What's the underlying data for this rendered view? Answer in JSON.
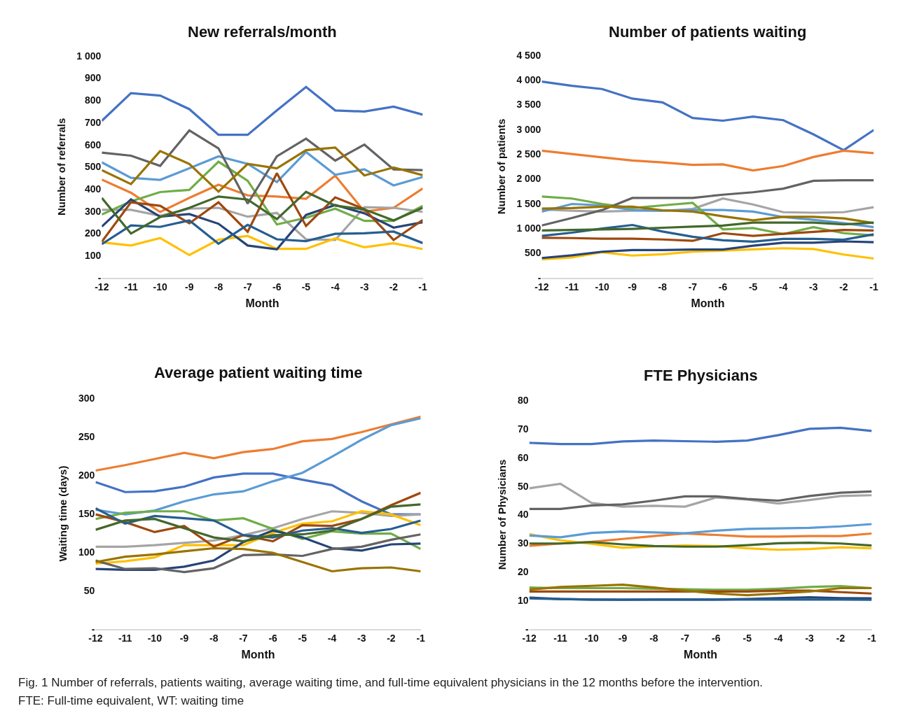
{
  "chart_data": [
    {
      "type": "line",
      "title": "New referrals/month",
      "xlabel": "Month",
      "ylabel": "Number of referrals",
      "categories": [
        "-12",
        "-11",
        "-10",
        "-9",
        "-8",
        "-7",
        "-6",
        "-5",
        "-4",
        "-3",
        "-2",
        "-1"
      ],
      "ylim": [
        0,
        1000
      ],
      "yticks": [
        {
          "value": 0,
          "label": "-"
        },
        100,
        200,
        300,
        400,
        500,
        600,
        700,
        800,
        900,
        {
          "value": 1000,
          "label": "1 000"
        }
      ],
      "annotations": [
        "Fig. 1 Number of referrals, patients waiting, average waiting time, and full-time equivalent physicians in the 12 months before the intervention.",
        "FTE: Full-time equivalent, WT: waiting time"
      ],
      "series": [
        {
          "color": "#4472c4",
          "values": [
            707,
            832,
            821,
            760,
            644,
            644,
            754,
            860,
            754,
            749,
            771,
            735
          ]
        },
        {
          "color": "#ed7d31",
          "values": [
            442,
            383,
            296,
            360,
            419,
            371,
            366,
            356,
            460,
            298,
            315,
            402
          ]
        },
        {
          "color": "#a5a5a5",
          "values": [
            306,
            306,
            279,
            311,
            315,
            275,
            292,
            173,
            170,
            318,
            315,
            297
          ]
        },
        {
          "color": "#ffc000",
          "values": [
            159,
            145,
            179,
            102,
            171,
            188,
            130,
            130,
            177,
            137,
            155,
            129
          ]
        },
        {
          "color": "#5b9bd5",
          "values": [
            520,
            450,
            441,
            493,
            547,
            513,
            431,
            567,
            464,
            489,
            416,
            454
          ]
        },
        {
          "color": "#70ad47",
          "values": [
            285,
            344,
            386,
            396,
            523,
            437,
            240,
            270,
            311,
            256,
            256,
            324
          ]
        },
        {
          "color": "#264478",
          "values": [
            230,
            353,
            275,
            287,
            243,
            145,
            128,
            283,
            328,
            290,
            226,
            250
          ]
        },
        {
          "color": "#9e480e",
          "values": [
            162,
            340,
            324,
            245,
            340,
            207,
            471,
            233,
            362,
            309,
            170,
            260
          ]
        },
        {
          "color": "#636363",
          "values": [
            564,
            550,
            504,
            664,
            583,
            334,
            547,
            627,
            528,
            600,
            488,
            485
          ]
        },
        {
          "color": "#997300",
          "values": [
            485,
            422,
            571,
            513,
            388,
            513,
            493,
            575,
            587,
            461,
            497,
            462
          ]
        },
        {
          "color": "#255e91",
          "values": [
            151,
            236,
            229,
            258,
            153,
            238,
            173,
            165,
            198,
            200,
            208,
            156
          ]
        },
        {
          "color": "#43682b",
          "values": [
            360,
            199,
            273,
            315,
            366,
            352,
            264,
            387,
            325,
            308,
            258,
            315
          ]
        }
      ]
    },
    {
      "type": "line",
      "title": "Number of patients waiting",
      "xlabel": "Month",
      "ylabel": "Number of patients",
      "categories": [
        "-12",
        "-11",
        "-10",
        "-9",
        "-8",
        "-7",
        "-6",
        "-5",
        "-4",
        "-3",
        "-2",
        "-1"
      ],
      "ylim": [
        0,
        4500
      ],
      "yticks": [
        {
          "value": 0,
          "label": "-"
        },
        500,
        {
          "value": 1000,
          "label": "1 000"
        },
        {
          "value": 1500,
          "label": "1 500"
        },
        {
          "value": 2000,
          "label": "2 000"
        },
        {
          "value": 2500,
          "label": "2 500"
        },
        {
          "value": 3000,
          "label": "3 000"
        },
        {
          "value": 3500,
          "label": "3 500"
        },
        {
          "value": 4000,
          "label": "4 000"
        },
        {
          "value": 4500,
          "label": "4 500"
        }
      ],
      "series": [
        {
          "color": "#4472c4",
          "values": [
            3965,
            3882,
            3816,
            3622,
            3545,
            3230,
            3175,
            3258,
            3186,
            2899,
            2579,
            2987
          ]
        },
        {
          "color": "#ed7d31",
          "values": [
            2568,
            2501,
            2435,
            2369,
            2330,
            2281,
            2292,
            2170,
            2258,
            2441,
            2568,
            2518
          ]
        },
        {
          "color": "#a5a5a5",
          "values": [
            1380,
            1353,
            1336,
            1353,
            1353,
            1391,
            1601,
            1480,
            1325,
            1314,
            1325,
            1425
          ]
        },
        {
          "color": "#ffc000",
          "values": [
            370,
            409,
            514,
            447,
            475,
            525,
            547,
            574,
            596,
            580,
            469,
            387
          ]
        },
        {
          "color": "#5b9bd5",
          "values": [
            1336,
            1491,
            1463,
            1369,
            1353,
            1369,
            1369,
            1336,
            1226,
            1171,
            1104,
            1022
          ]
        },
        {
          "color": "#70ad47",
          "values": [
            1640,
            1601,
            1491,
            1408,
            1463,
            1513,
            977,
            1005,
            883,
            1022,
            900,
            856
          ]
        },
        {
          "color": "#264478",
          "values": [
            398,
            453,
            525,
            558,
            558,
            569,
            569,
            646,
            707,
            707,
            734,
            718
          ]
        },
        {
          "color": "#9e480e",
          "values": [
            806,
            801,
            790,
            790,
            773,
            745,
            900,
            845,
            889,
            928,
            966,
            955
          ]
        },
        {
          "color": "#636363",
          "values": [
            1055,
            1209,
            1369,
            1612,
            1612,
            1612,
            1679,
            1728,
            1800,
            1960,
            1971,
            1971
          ]
        },
        {
          "color": "#997300",
          "values": [
            1397,
            1408,
            1436,
            1436,
            1364,
            1336,
            1242,
            1160,
            1231,
            1231,
            1198,
            1104
          ]
        },
        {
          "color": "#255e91",
          "values": [
            845,
            911,
            994,
            1066,
            933,
            828,
            756,
            729,
            784,
            784,
            767,
            878
          ]
        },
        {
          "color": "#43682b",
          "values": [
            955,
            966,
            977,
            988,
            1010,
            1033,
            1055,
            1115,
            1115,
            1115,
            1077,
            1115
          ]
        }
      ]
    },
    {
      "type": "line",
      "title": "Average patient waiting time",
      "xlabel": "Month",
      "ylabel": "Waiting time (days)",
      "categories": [
        "-12",
        "-11",
        "-10",
        "-9",
        "-8",
        "-7",
        "-6",
        "-5",
        "-4",
        "-3",
        "-2",
        "-1"
      ],
      "ylim": [
        0,
        300
      ],
      "yticks": [
        {
          "value": 0,
          "label": "-"
        },
        50,
        100,
        150,
        200,
        250,
        300
      ],
      "series": [
        {
          "color": "#4472c4",
          "values": [
            191,
            178,
            179,
            185,
            197,
            202,
            202,
            194,
            187,
            166,
            149,
            149
          ]
        },
        {
          "color": "#ed7d31",
          "values": [
            206,
            213,
            221,
            229,
            222,
            230,
            234,
            244,
            247,
            256,
            266,
            276
          ]
        },
        {
          "color": "#a5a5a5",
          "values": [
            107,
            107,
            109,
            112,
            115,
            122,
            131,
            143,
            153,
            151,
            147,
            149
          ]
        },
        {
          "color": "#ffc000",
          "values": [
            85,
            88,
            93,
            109,
            109,
            109,
            125,
            137,
            140,
            153,
            149,
            135
          ]
        },
        {
          "color": "#5b9bd5",
          "values": [
            155,
            149,
            154,
            166,
            175,
            179,
            192,
            203,
            224,
            246,
            265,
            274
          ]
        },
        {
          "color": "#70ad47",
          "values": [
            143,
            151,
            153,
            153,
            141,
            144,
            130,
            117,
            127,
            124,
            124,
            104
          ]
        },
        {
          "color": "#264478",
          "values": [
            78,
            77,
            77,
            81,
            89,
            113,
            128,
            119,
            105,
            102,
            110,
            111
          ]
        },
        {
          "color": "#9e480e",
          "values": [
            149,
            139,
            126,
            134,
            107,
            122,
            114,
            135,
            134,
            143,
            161,
            177
          ]
        },
        {
          "color": "#636363",
          "values": [
            89,
            78,
            79,
            74,
            79,
            96,
            97,
            95,
            104,
            107,
            116,
            123
          ]
        },
        {
          "color": "#997300",
          "values": [
            87,
            94,
            97,
            101,
            105,
            104,
            99,
            87,
            75,
            79,
            80,
            75
          ]
        },
        {
          "color": "#255e91",
          "values": [
            157,
            137,
            147,
            144,
            141,
            122,
            119,
            128,
            131,
            125,
            130,
            141
          ]
        },
        {
          "color": "#43682b",
          "values": [
            129,
            141,
            143,
            131,
            119,
            114,
            122,
            123,
            128,
            143,
            159,
            162
          ]
        }
      ]
    },
    {
      "type": "line",
      "title": "FTE Physicians",
      "xlabel": "Month",
      "ylabel": "Number of Physicians",
      "categories": [
        "-12",
        "-11",
        "-10",
        "-9",
        "-8",
        "-7",
        "-6",
        "-5",
        "-4",
        "-3",
        "-2",
        "-1"
      ],
      "ylim": [
        0,
        80
      ],
      "yticks": [
        {
          "value": 0,
          "label": "-"
        },
        10,
        20,
        30,
        40,
        50,
        60,
        70,
        80
      ],
      "series": [
        {
          "color": "#4472c4",
          "values": [
            65.1,
            64.7,
            64.7,
            65.6,
            65.9,
            65.7,
            65.5,
            65.9,
            67.8,
            70.0,
            70.4,
            69.3
          ]
        },
        {
          "color": "#ed7d31",
          "values": [
            29.1,
            29.9,
            30.5,
            31.5,
            32.5,
            33.4,
            32.9,
            32.3,
            32.3,
            32.5,
            32.5,
            33.4
          ]
        },
        {
          "color": "#a5a5a5",
          "values": [
            49.2,
            50.8,
            44.1,
            42.8,
            43.1,
            42.8,
            46.0,
            45.3,
            43.9,
            45.1,
            46.5,
            46.8
          ]
        },
        {
          "color": "#ffc000",
          "values": [
            33.2,
            31.0,
            29.8,
            28.4,
            28.9,
            29.2,
            29.0,
            28.2,
            27.7,
            28.0,
            28.6,
            28.2
          ]
        },
        {
          "color": "#5b9bd5",
          "values": [
            32.7,
            32.1,
            33.6,
            34.1,
            33.8,
            33.5,
            34.4,
            35.0,
            35.2,
            35.4,
            35.9,
            36.7
          ]
        },
        {
          "color": "#70ad47",
          "values": [
            14.5,
            14.3,
            14.3,
            14.3,
            14.1,
            13.9,
            13.7,
            13.7,
            14.1,
            14.7,
            15.0,
            14.3
          ]
        },
        {
          "color": "#264478",
          "values": [
            11.0,
            10.5,
            10.3,
            10.2,
            10.3,
            10.3,
            10.3,
            10.5,
            10.8,
            11.1,
            10.8,
            10.7
          ]
        },
        {
          "color": "#9e480e",
          "values": [
            13.1,
            13.1,
            13.1,
            13.1,
            13.1,
            13.1,
            13.1,
            13.1,
            13.4,
            13.4,
            12.9,
            12.4
          ]
        },
        {
          "color": "#636363",
          "values": [
            42.0,
            42.0,
            43.2,
            43.6,
            44.9,
            46.4,
            46.4,
            45.5,
            44.9,
            46.5,
            47.7,
            48.1
          ]
        },
        {
          "color": "#997300",
          "values": [
            13.8,
            14.7,
            15.1,
            15.5,
            14.5,
            13.4,
            12.4,
            11.8,
            12.4,
            13.1,
            14.3,
            14.3
          ]
        },
        {
          "color": "#255e91",
          "values": [
            10.7,
            10.5,
            10.3,
            10.3,
            10.3,
            10.3,
            10.3,
            10.3,
            10.3,
            10.3,
            10.3,
            10.2
          ]
        },
        {
          "color": "#43682b",
          "values": [
            29.9,
            29.9,
            30.4,
            29.6,
            29.0,
            28.8,
            28.8,
            29.3,
            30.0,
            30.2,
            29.9,
            29.2
          ]
        }
      ]
    }
  ]
}
